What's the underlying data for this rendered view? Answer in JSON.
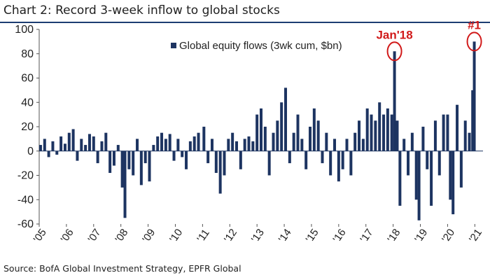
{
  "title": "Chart 2: Record 3-week inflow to global stocks",
  "source": "Source: BofA Global Investment Strategy, EPFR Global",
  "chart_data": {
    "type": "bar",
    "title": "Chart 2: Record 3-week inflow to global stocks",
    "xlabel": "",
    "ylabel": "",
    "ylim": [
      -60,
      100
    ],
    "yticks": [
      -60,
      -40,
      -20,
      0,
      20,
      40,
      60,
      80,
      100
    ],
    "xlim": [
      2005.0,
      2021.3
    ],
    "xticks": [
      {
        "value": 2005.0,
        "label": "'05"
      },
      {
        "value": 2006.0,
        "label": "'06"
      },
      {
        "value": 2007.0,
        "label": "'07"
      },
      {
        "value": 2008.0,
        "label": "'08"
      },
      {
        "value": 2009.0,
        "label": "'09"
      },
      {
        "value": 2010.0,
        "label": "'10"
      },
      {
        "value": 2011.0,
        "label": "'11"
      },
      {
        "value": 2012.0,
        "label": "'12"
      },
      {
        "value": 2013.0,
        "label": "'13"
      },
      {
        "value": 2014.0,
        "label": "'14"
      },
      {
        "value": 2015.0,
        "label": "'15"
      },
      {
        "value": 2016.0,
        "label": "'16"
      },
      {
        "value": 2017.0,
        "label": "'17"
      },
      {
        "value": 2018.0,
        "label": "'18"
      },
      {
        "value": 2019.0,
        "label": "'19"
      },
      {
        "value": 2020.0,
        "label": "'20"
      },
      {
        "value": 2021.0,
        "label": "'21"
      }
    ],
    "grid": false,
    "legend_position": "top-center",
    "series": [
      {
        "name": "Global equity flows (3wk cum, $bn)",
        "color": "#1d3461",
        "points": [
          {
            "x": 2005.05,
            "y": 5
          },
          {
            "x": 2005.2,
            "y": 10
          },
          {
            "x": 2005.35,
            "y": -5
          },
          {
            "x": 2005.5,
            "y": 8
          },
          {
            "x": 2005.65,
            "y": -3
          },
          {
            "x": 2005.8,
            "y": 12
          },
          {
            "x": 2005.95,
            "y": 6
          },
          {
            "x": 2006.1,
            "y": 15
          },
          {
            "x": 2006.25,
            "y": 18
          },
          {
            "x": 2006.4,
            "y": -8
          },
          {
            "x": 2006.55,
            "y": 10
          },
          {
            "x": 2006.7,
            "y": 5
          },
          {
            "x": 2006.85,
            "y": 14
          },
          {
            "x": 2007.0,
            "y": 12
          },
          {
            "x": 2007.15,
            "y": -10
          },
          {
            "x": 2007.3,
            "y": 8
          },
          {
            "x": 2007.45,
            "y": 15
          },
          {
            "x": 2007.6,
            "y": -18
          },
          {
            "x": 2007.75,
            "y": -12
          },
          {
            "x": 2007.9,
            "y": 5
          },
          {
            "x": 2008.05,
            "y": -30
          },
          {
            "x": 2008.15,
            "y": -55
          },
          {
            "x": 2008.3,
            "y": -15
          },
          {
            "x": 2008.45,
            "y": -20
          },
          {
            "x": 2008.6,
            "y": 10
          },
          {
            "x": 2008.75,
            "y": -28
          },
          {
            "x": 2008.9,
            "y": -10
          },
          {
            "x": 2009.05,
            "y": -25
          },
          {
            "x": 2009.2,
            "y": 5
          },
          {
            "x": 2009.35,
            "y": 12
          },
          {
            "x": 2009.5,
            "y": 15
          },
          {
            "x": 2009.65,
            "y": 10
          },
          {
            "x": 2009.8,
            "y": 14
          },
          {
            "x": 2009.95,
            "y": -8
          },
          {
            "x": 2010.1,
            "y": 10
          },
          {
            "x": 2010.25,
            "y": -5
          },
          {
            "x": 2010.4,
            "y": -15
          },
          {
            "x": 2010.55,
            "y": 8
          },
          {
            "x": 2010.7,
            "y": 12
          },
          {
            "x": 2010.85,
            "y": 15
          },
          {
            "x": 2011.05,
            "y": 20
          },
          {
            "x": 2011.2,
            "y": -10
          },
          {
            "x": 2011.35,
            "y": 10
          },
          {
            "x": 2011.5,
            "y": -18
          },
          {
            "x": 2011.65,
            "y": -35
          },
          {
            "x": 2011.8,
            "y": -20
          },
          {
            "x": 2011.95,
            "y": 10
          },
          {
            "x": 2012.1,
            "y": 15
          },
          {
            "x": 2012.25,
            "y": 8
          },
          {
            "x": 2012.4,
            "y": -15
          },
          {
            "x": 2012.55,
            "y": 10
          },
          {
            "x": 2012.7,
            "y": 12
          },
          {
            "x": 2012.85,
            "y": 8
          },
          {
            "x": 2013.0,
            "y": 30
          },
          {
            "x": 2013.15,
            "y": 35
          },
          {
            "x": 2013.3,
            "y": 20
          },
          {
            "x": 2013.45,
            "y": -20
          },
          {
            "x": 2013.6,
            "y": 15
          },
          {
            "x": 2013.75,
            "y": 25
          },
          {
            "x": 2013.9,
            "y": 40
          },
          {
            "x": 2014.05,
            "y": 52
          },
          {
            "x": 2014.2,
            "y": -10
          },
          {
            "x": 2014.35,
            "y": 15
          },
          {
            "x": 2014.5,
            "y": 30
          },
          {
            "x": 2014.65,
            "y": 10
          },
          {
            "x": 2014.8,
            "y": -15
          },
          {
            "x": 2014.95,
            "y": 20
          },
          {
            "x": 2015.1,
            "y": 35
          },
          {
            "x": 2015.25,
            "y": 25
          },
          {
            "x": 2015.4,
            "y": -10
          },
          {
            "x": 2015.55,
            "y": 15
          },
          {
            "x": 2015.7,
            "y": -20
          },
          {
            "x": 2015.85,
            "y": 10
          },
          {
            "x": 2016.0,
            "y": -25
          },
          {
            "x": 2016.15,
            "y": -15
          },
          {
            "x": 2016.3,
            "y": 10
          },
          {
            "x": 2016.45,
            "y": -20
          },
          {
            "x": 2016.6,
            "y": 15
          },
          {
            "x": 2016.75,
            "y": 25
          },
          {
            "x": 2016.9,
            "y": 10
          },
          {
            "x": 2017.05,
            "y": 35
          },
          {
            "x": 2017.2,
            "y": 30
          },
          {
            "x": 2017.35,
            "y": 25
          },
          {
            "x": 2017.5,
            "y": 40
          },
          {
            "x": 2017.65,
            "y": 30
          },
          {
            "x": 2017.8,
            "y": 35
          },
          {
            "x": 2017.95,
            "y": 30
          },
          {
            "x": 2018.05,
            "y": 82
          },
          {
            "x": 2018.15,
            "y": 25
          },
          {
            "x": 2018.25,
            "y": -45
          },
          {
            "x": 2018.4,
            "y": 10
          },
          {
            "x": 2018.55,
            "y": -20
          },
          {
            "x": 2018.7,
            "y": 15
          },
          {
            "x": 2018.85,
            "y": -40
          },
          {
            "x": 2018.95,
            "y": -57
          },
          {
            "x": 2019.1,
            "y": 20
          },
          {
            "x": 2019.25,
            "y": -15
          },
          {
            "x": 2019.4,
            "y": -45
          },
          {
            "x": 2019.55,
            "y": 25
          },
          {
            "x": 2019.7,
            "y": -20
          },
          {
            "x": 2019.85,
            "y": 30
          },
          {
            "x": 2020.0,
            "y": 30
          },
          {
            "x": 2020.1,
            "y": -40
          },
          {
            "x": 2020.2,
            "y": -52
          },
          {
            "x": 2020.35,
            "y": 38
          },
          {
            "x": 2020.5,
            "y": -30
          },
          {
            "x": 2020.65,
            "y": 25
          },
          {
            "x": 2020.8,
            "y": 15
          },
          {
            "x": 2020.92,
            "y": 50
          },
          {
            "x": 2020.98,
            "y": 90
          }
        ]
      }
    ],
    "annotations": [
      {
        "text": "Jan'18",
        "x": 2018.05,
        "y": 82,
        "color": "#d11a1a"
      },
      {
        "text": "#1",
        "x": 2020.98,
        "y": 90,
        "color": "#d11a1a"
      }
    ]
  }
}
